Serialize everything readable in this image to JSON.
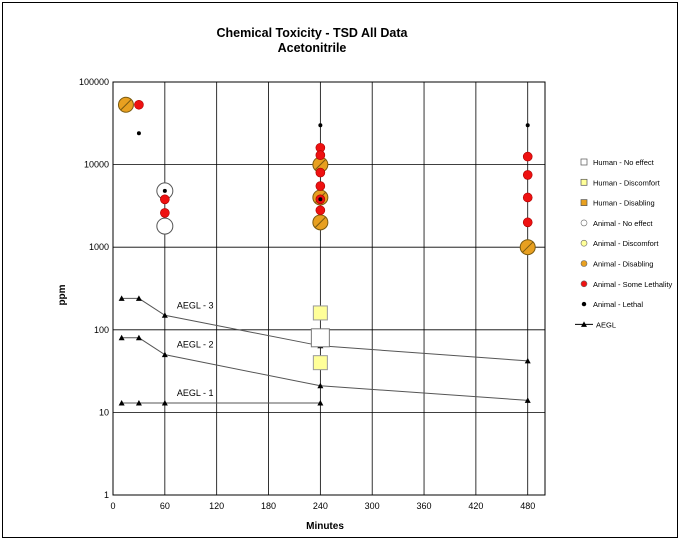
{
  "chart_data": {
    "type": "scatter",
    "title": "Chemical Toxicity - TSD All Data",
    "subtitle": "Acetonitrile",
    "xlabel": "Minutes",
    "ylabel": "ppm",
    "xlim": [
      0,
      500
    ],
    "ylim": [
      1,
      100000
    ],
    "yscale": "log",
    "x_ticks": [
      "0",
      "60",
      "120",
      "180",
      "240",
      "300",
      "360",
      "420",
      "480"
    ],
    "y_ticks": [
      "1",
      "10",
      "100",
      "1000",
      "10000",
      "100000"
    ],
    "grid": true,
    "legend_position": "right",
    "colors": {
      "human_no_effect": "#ffffff",
      "human_discomfort": "#ffff99",
      "human_disabling": "#e8a020",
      "animal_some_lethality": "#ee1111",
      "animal_lethal": "#000000",
      "aegl": "#555555"
    },
    "legend": [
      {
        "key": "human_no_effect",
        "label": "Human - No effect",
        "shape": "square",
        "fill": "#ffffff"
      },
      {
        "key": "human_discomfort",
        "label": "Human - Discomfort",
        "shape": "square",
        "fill": "#ffff99"
      },
      {
        "key": "human_disabling",
        "label": "Human - Disabling",
        "shape": "square",
        "fill": "#e8a020"
      },
      {
        "key": "animal_no_effect",
        "label": "Animal - No effect",
        "shape": "circle",
        "fill": "#ffffff"
      },
      {
        "key": "animal_discomfort",
        "label": "Animal - Discomfort",
        "shape": "circle",
        "fill": "#ffff99"
      },
      {
        "key": "animal_disabling",
        "label": "Animal - Disabling",
        "shape": "circle",
        "fill": "#e8a020"
      },
      {
        "key": "animal_some_lethality",
        "label": "Animal - Some Lethality",
        "shape": "circle",
        "fill": "#ee1111"
      },
      {
        "key": "animal_lethal",
        "label": "Animal - Lethal",
        "shape": "dot",
        "fill": "#000000"
      },
      {
        "key": "aegl",
        "label": "AEGL",
        "shape": "line-triangle",
        "fill": "#000000"
      }
    ],
    "series": [
      {
        "key": "human_no_effect",
        "points": [
          [
            240,
            80
          ]
        ]
      },
      {
        "key": "human_discomfort",
        "points": [
          [
            240,
            160
          ],
          [
            240,
            40
          ]
        ]
      },
      {
        "key": "animal_no_effect",
        "points": [
          [
            60,
            4800
          ],
          [
            60,
            1800
          ]
        ]
      },
      {
        "key": "animal_disabling",
        "points": [
          [
            15,
            53000
          ],
          [
            240,
            10000
          ],
          [
            240,
            4000
          ],
          [
            240,
            2000
          ],
          [
            480,
            1000
          ]
        ]
      },
      {
        "key": "animal_some_lethality",
        "points": [
          [
            30,
            53000
          ],
          [
            60,
            3800
          ],
          [
            60,
            2600
          ],
          [
            240,
            16000
          ],
          [
            240,
            13000
          ],
          [
            240,
            8000
          ],
          [
            240,
            5500
          ],
          [
            240,
            3800
          ],
          [
            240,
            2800
          ],
          [
            480,
            12500
          ],
          [
            480,
            7500
          ],
          [
            480,
            4000
          ],
          [
            480,
            2000
          ]
        ]
      },
      {
        "key": "animal_lethal",
        "points": [
          [
            30,
            24000
          ],
          [
            60,
            4800
          ],
          [
            240,
            30000
          ],
          [
            240,
            3800
          ],
          [
            480,
            30000
          ]
        ]
      }
    ],
    "aegl_lines": [
      {
        "name": "AEGL - 3",
        "x": [
          10,
          30,
          60,
          240,
          480
        ],
        "y": [
          240,
          240,
          150,
          64,
          42
        ]
      },
      {
        "name": "AEGL - 2",
        "x": [
          10,
          30,
          60,
          240,
          480
        ],
        "y": [
          80,
          80,
          50,
          21,
          14
        ]
      },
      {
        "name": "AEGL - 1",
        "x": [
          10,
          30,
          60,
          240
        ],
        "y": [
          13,
          13,
          13,
          13
        ]
      }
    ]
  }
}
